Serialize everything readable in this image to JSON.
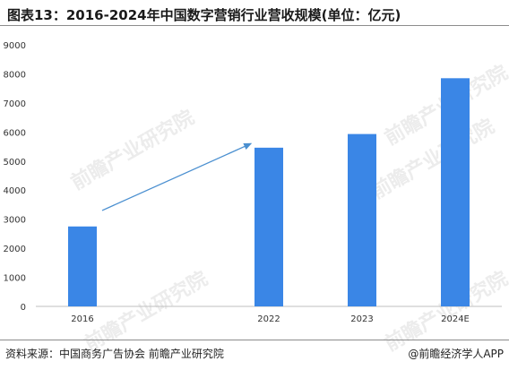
{
  "header": {
    "title": "图表13：2016-2024年中国数字营销行业营收规模(单位：亿元)"
  },
  "footer": {
    "source": "资料来源：中国商务广告协会 前瞻产业研究院",
    "brand": "@前瞻经济学人APP"
  },
  "watermark": {
    "text": "前瞻产业研究院"
  },
  "colors": {
    "bar": "#3a86e6",
    "arrow": "#4a8fd0",
    "axis": "#bfbfbf",
    "text": "#333333"
  },
  "chart_data": {
    "type": "bar",
    "title": "图表13：2016-2024年中国数字营销行业营收规模(单位：亿元)",
    "xlabel": "",
    "ylabel": "",
    "categories": [
      "2016",
      "",
      "2022",
      "2023",
      "2024E"
    ],
    "values": [
      2750,
      null,
      5460,
      5930,
      7850
    ],
    "ylim": [
      0,
      9000
    ],
    "yticks": [
      0,
      1000,
      2000,
      3000,
      4000,
      5000,
      6000,
      7000,
      8000,
      9000
    ],
    "grid": false,
    "legend": "none",
    "annotation": {
      "type": "arrow",
      "from_category": "2016",
      "to_category": "2022",
      "from_value": 3300,
      "to_value": 5600
    }
  }
}
